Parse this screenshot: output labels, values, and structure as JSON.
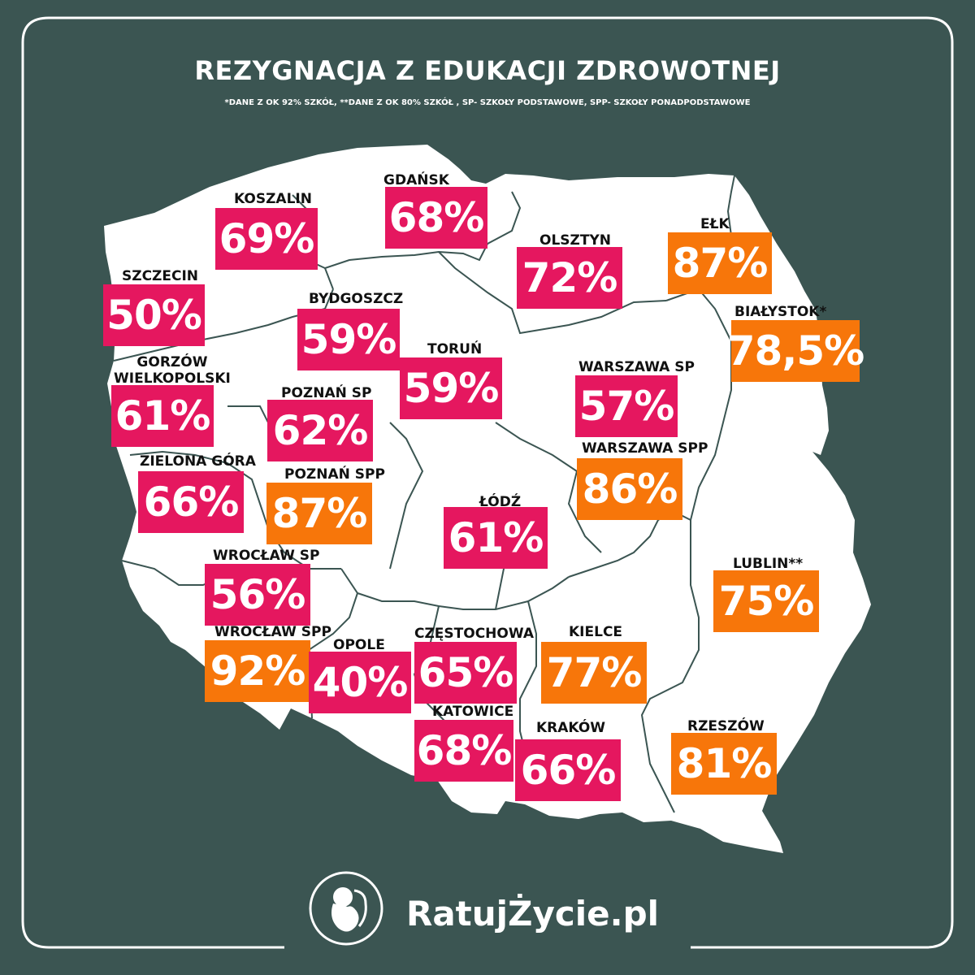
{
  "header": {
    "title": "REZYGNACJA Z EDUKACJI ZDROWOTNEJ",
    "subtitle": "*DANE Z OK 92% SZKÓŁ, **DANE Z OK 80% SZKÓŁ , SP- SZKOŁY PODSTAWOWE,  SPP- SZKOŁY PONADPODSTAWOWE"
  },
  "colors": {
    "background": "#3b5552",
    "land": "#ffffff",
    "border_line": "#3b5552",
    "pink": "#e5175f",
    "orange": "#f7760a",
    "text": "#ffffff",
    "label": "#111111"
  },
  "regions": [
    {
      "name": "SZCZECIN",
      "value": "50%",
      "color": "pink"
    },
    {
      "name": "KOSZALIN",
      "value": "69%",
      "color": "pink"
    },
    {
      "name": "GDAŃSK",
      "value": "68%",
      "color": "pink"
    },
    {
      "name": "OLSZTYN",
      "value": "72%",
      "color": "pink"
    },
    {
      "name": "EŁK",
      "value": "87%",
      "color": "orange"
    },
    {
      "name": "BIAŁYSTOK*",
      "value": "78,5%",
      "color": "orange"
    },
    {
      "name": "BYDGOSZCZ",
      "value": "59%",
      "color": "pink"
    },
    {
      "name": "TORUŃ",
      "value": "59%",
      "color": "pink"
    },
    {
      "name": "GORZÓW\nWIELKOPOLSKI",
      "value": "61%",
      "color": "pink"
    },
    {
      "name": "POZNAŃ SP",
      "value": "62%",
      "color": "pink"
    },
    {
      "name": "WARSZAWA SP",
      "value": "57%",
      "color": "pink"
    },
    {
      "name": "ZIELONA GÓRA",
      "value": "66%",
      "color": "pink"
    },
    {
      "name": "POZNAŃ SPP",
      "value": "87%",
      "color": "orange"
    },
    {
      "name": "WARSZAWA SPP",
      "value": "86%",
      "color": "orange"
    },
    {
      "name": "ŁÓDŹ",
      "value": "61%",
      "color": "pink"
    },
    {
      "name": "LUBLIN**",
      "value": "75%",
      "color": "orange"
    },
    {
      "name": "WROCŁAW SP",
      "value": "56%",
      "color": "pink"
    },
    {
      "name": "WROCŁAW SPP",
      "value": "92%",
      "color": "orange"
    },
    {
      "name": "OPOLE",
      "value": "40%",
      "color": "pink"
    },
    {
      "name": "CZĘSTOCHOWA",
      "value": "65%",
      "color": "pink"
    },
    {
      "name": "KIELCE",
      "value": "77%",
      "color": "orange"
    },
    {
      "name": "KATOWICE",
      "value": "68%",
      "color": "pink"
    },
    {
      "name": "KRAKÓW",
      "value": "66%",
      "color": "pink"
    },
    {
      "name": "RZESZÓW",
      "value": "81%",
      "color": "orange"
    }
  ],
  "logo": {
    "icon": "fetus-in-circle-icon",
    "text": "RatujŻycie.pl"
  }
}
